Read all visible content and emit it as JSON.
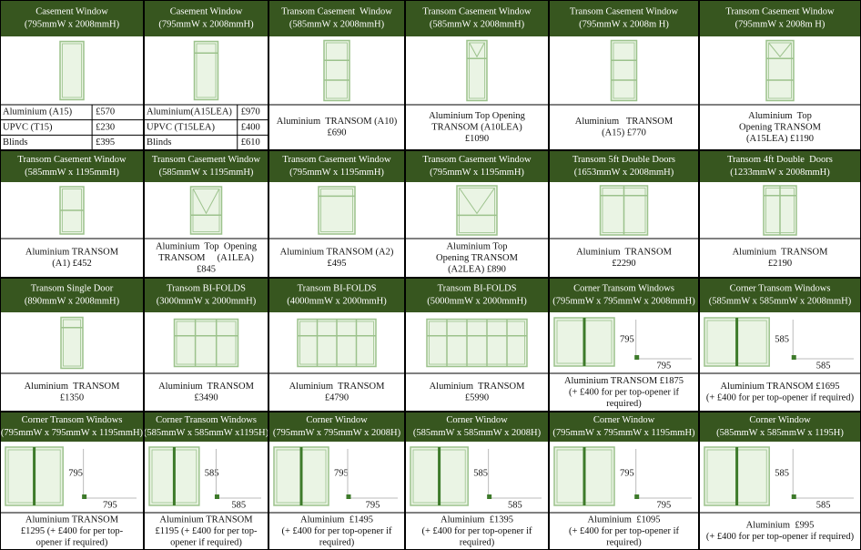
{
  "rows": [
    [
      {
        "title": [
          "Casement Window",
          "(795mmW x 2008mmH)"
        ],
        "prices": [
          [
            "Aluminium (A15)",
            "£570"
          ],
          [
            "UPVC (T15)",
            "£230"
          ],
          [
            "Blinds",
            "£395"
          ]
        ]
      },
      {
        "title": [
          "Casement Window",
          "(795mmW x 2008mmH)"
        ],
        "prices": [
          [
            "Aluminium(A15LEA)",
            "£970"
          ],
          [
            "UPVC (T15LEA)",
            "£400"
          ],
          [
            "Blinds",
            "£610"
          ]
        ]
      },
      {
        "title": [
          "Transom Casement  Window",
          "(585mmW x 2008mmH)"
        ],
        "lines": [
          "Aluminium  TRANSOM (A10)",
          "£690"
        ]
      },
      {
        "title": [
          "Transom Casement Window",
          "(585mmW x 2008mmH)"
        ],
        "lines": [
          "Aluminium Top Opening",
          "TRANSOM (A10LEA)",
          "£1090"
        ]
      },
      {
        "title": [
          "Transom Casement Window",
          "(795mmW x 2008m H)"
        ],
        "lines": [
          "Aluminium   TRANSOM",
          "(A15) £770"
        ]
      },
      {
        "title": [
          "Transom Casement Window",
          "(795mmW x 2008m H)"
        ],
        "lines": [
          "Aluminium  Top",
          "Opening TRANSOM",
          "(A15LEA) £1190"
        ]
      }
    ],
    [
      {
        "title": [
          "Transom Casement Window",
          "(585mmW x 1195mmH)"
        ],
        "lines": [
          "Aluminium TRANSOM",
          "(A1) £452"
        ]
      },
      {
        "title": [
          "Transom Casement Window",
          "(585mmW x 1195mmH)"
        ],
        "lines": [
          "Aluminium  Top  Opening",
          "TRANSOM     (A1LEA)",
          "£845"
        ]
      },
      {
        "title": [
          "Transom Casement Window",
          "(795mmW x 1195mmH)"
        ],
        "lines": [
          "Aluminium TRANSOM (A2)",
          "£495"
        ]
      },
      {
        "title": [
          "Transom Casement Window",
          "(795mmW x 1195mmH)"
        ],
        "lines": [
          "Aluminium Top",
          "Opening TRANSOM",
          "(A2LEA) £890"
        ]
      },
      {
        "title": [
          "Transom 5ft Double Doors",
          "(1653mmW x 2008mmH)"
        ],
        "lines": [
          "Aluminium  TRANSOM",
          "£2290"
        ]
      },
      {
        "title": [
          "Transom 4ft Double  Doors",
          "(1233mmW x 2008mmH)"
        ],
        "lines": [
          "Aluminium  TRANSOM",
          "£2190"
        ]
      }
    ],
    [
      {
        "title": [
          "Transom Single Door",
          "(890mmW x 2008mmH)"
        ],
        "lines": [
          "Aluminium  TRANSOM",
          "£1350"
        ]
      },
      {
        "title": [
          "Transom BI-FOLDS",
          "(3000mmW x 2000mmH)"
        ],
        "lines": [
          "Aluminium  TRANSOM",
          "£3490"
        ]
      },
      {
        "title": [
          "Transom BI-FOLDS",
          "(4000mmW x 2000mmH)"
        ],
        "lines": [
          "Aluminium  TRANSOM",
          "£4790"
        ]
      },
      {
        "title": [
          "Transom BI-FOLDS",
          "(5000mmW x 2000mmH)"
        ],
        "lines": [
          "Aluminium  TRANSOM",
          "£5990"
        ]
      },
      {
        "title": [
          "Corner Transom Windows",
          "(795mmW x 795mmW x 2008mmH)"
        ],
        "dims": [
          795,
          795
        ],
        "lines": [
          "Aluminium TRANSOM £1875",
          "(+ £400 for per top-opener if",
          "required)"
        ]
      },
      {
        "title": [
          "Corner Transom Windows",
          "(585mmW x 585mmW x 2008mmH)"
        ],
        "dims": [
          585,
          585
        ],
        "lines": [
          "Aluminium TRANSOM £1695",
          "(+ £400 for per top-opener if required)"
        ]
      }
    ],
    [
      {
        "title": [
          "Corner Transom Windows",
          "(795mmW x 795mmW x 1195mmH)"
        ],
        "dims": [
          795,
          795
        ],
        "lines": [
          "Aluminium TRANSOM",
          "£1295 (+ £400 for per top-",
          "opener if required)"
        ]
      },
      {
        "title": [
          "Corner Transom Windows",
          "(585mmW x 585mmW x1195H)"
        ],
        "dims": [
          585,
          585
        ],
        "lines": [
          "Aluminium TRANSOM",
          "£1195 (+ £400 for per top-",
          "opener if required)"
        ]
      },
      {
        "title": [
          "Corner Window",
          "(795mmW x 795mmW x 2008H)"
        ],
        "dims": [
          795,
          795
        ],
        "lines": [
          "Aluminium  £1495",
          "(+ £400 for per top-opener if",
          "required)"
        ]
      },
      {
        "title": [
          "Corner Window",
          "(585mmW x 585mmW x 2008H)"
        ],
        "dims": [
          585,
          585
        ],
        "lines": [
          "Aluminium  £1395",
          "(+ £400 for per top-opener if",
          "required)"
        ]
      },
      {
        "title": [
          "Corner Window",
          "(795mmW x 795mmW x 1195mmH)"
        ],
        "dims": [
          795,
          795
        ],
        "lines": [
          "Aluminium  £1095",
          "(+ £400 for per top-opener if",
          "required)"
        ]
      },
      {
        "title": [
          "Corner Window",
          "(585mmW x 585mmW x 1195H)"
        ],
        "dims": [
          585,
          585
        ],
        "lines": [
          "Aluminium  £995",
          "(+ £400 for per top-opener if required)"
        ]
      }
    ]
  ]
}
